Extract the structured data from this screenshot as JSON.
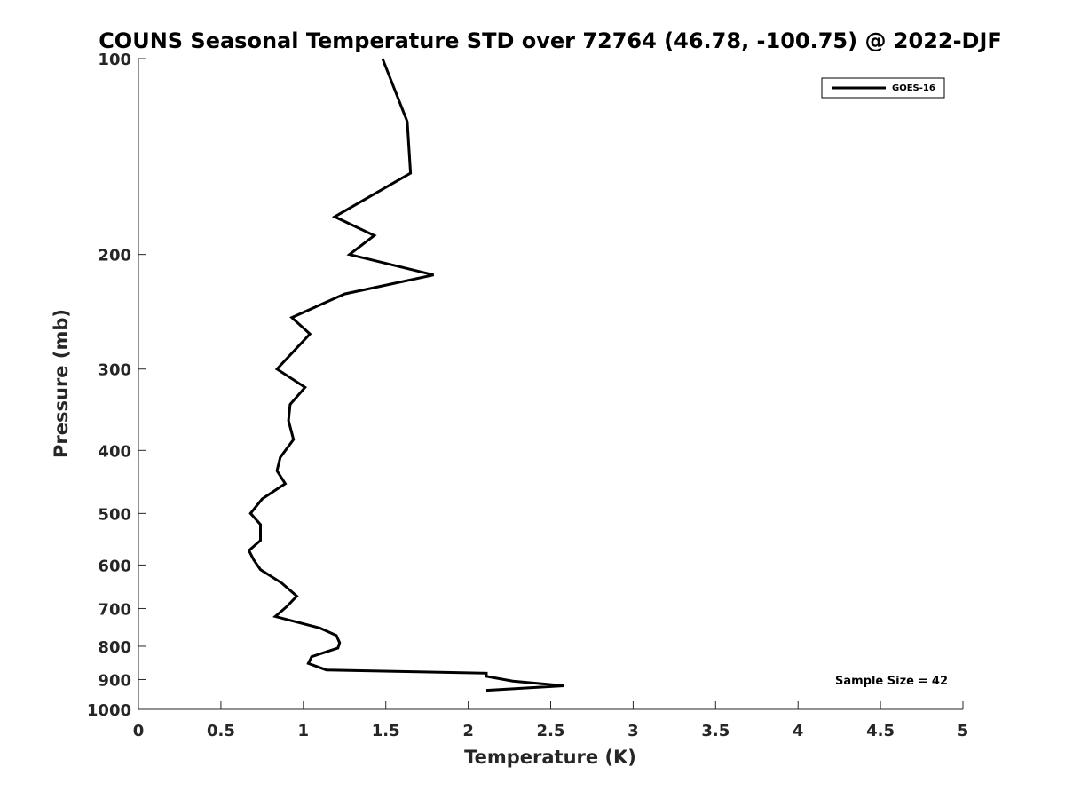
{
  "chart_data": {
    "type": "line",
    "title": "COUNS Seasonal Temperature STD over 72764 (46.78, -100.75) @ 2022-DJF",
    "xlabel": "Temperature (K)",
    "ylabel": "Pressure (mb)",
    "xlim": [
      0,
      5
    ],
    "ylim": [
      100,
      1000
    ],
    "y_scale": "log",
    "y_reversed": true,
    "x_ticks": [
      "0",
      "0.5",
      "1",
      "1.5",
      "2",
      "2.5",
      "3",
      "3.5",
      "4",
      "4.5",
      "5"
    ],
    "y_ticks": [
      "100",
      "200",
      "300",
      "400",
      "500",
      "600",
      "700",
      "800",
      "900",
      "1000"
    ],
    "grid": false,
    "legend_position": "top-right",
    "series": [
      {
        "name": "GOES-16",
        "color": "#000000",
        "points": [
          [
            1.48,
            100
          ],
          [
            1.63,
            125
          ],
          [
            1.65,
            150
          ],
          [
            1.19,
            175
          ],
          [
            1.43,
            187
          ],
          [
            1.28,
            200
          ],
          [
            1.79,
            215
          ],
          [
            1.25,
            230
          ],
          [
            0.93,
            250
          ],
          [
            1.04,
            265
          ],
          [
            0.84,
            300
          ],
          [
            1.01,
            320
          ],
          [
            0.92,
            340
          ],
          [
            0.91,
            360
          ],
          [
            0.94,
            385
          ],
          [
            0.86,
            410
          ],
          [
            0.84,
            430
          ],
          [
            0.89,
            450
          ],
          [
            0.75,
            475
          ],
          [
            0.68,
            500
          ],
          [
            0.74,
            520
          ],
          [
            0.74,
            550
          ],
          [
            0.67,
            570
          ],
          [
            0.7,
            590
          ],
          [
            0.74,
            610
          ],
          [
            0.87,
            640
          ],
          [
            0.96,
            670
          ],
          [
            0.9,
            695
          ],
          [
            0.83,
            720
          ],
          [
            1.1,
            750
          ],
          [
            1.2,
            770
          ],
          [
            1.22,
            790
          ],
          [
            1.21,
            805
          ],
          [
            1.05,
            830
          ],
          [
            1.03,
            850
          ],
          [
            1.14,
            870
          ],
          [
            2.11,
            880
          ],
          [
            2.11,
            890
          ],
          [
            2.27,
            905
          ],
          [
            2.58,
            920
          ],
          [
            2.11,
            935
          ]
        ]
      }
    ],
    "annotation": "Sample Size = 42"
  }
}
